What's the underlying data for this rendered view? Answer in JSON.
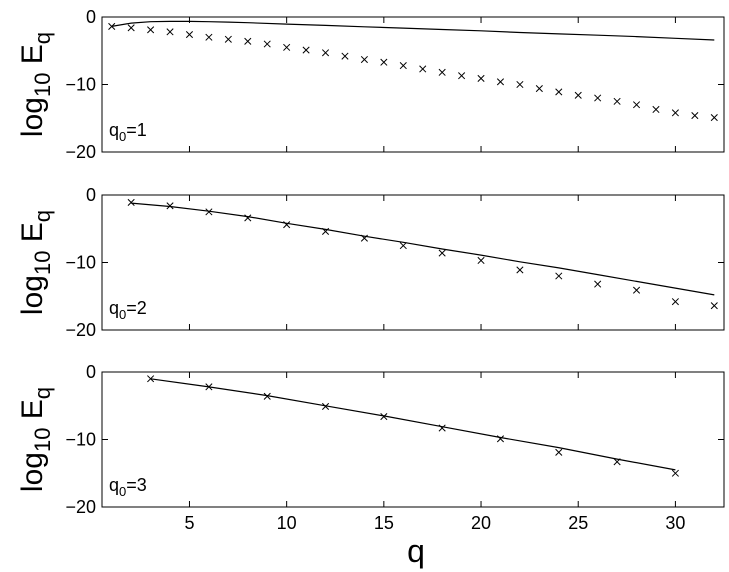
{
  "chart_data": [
    {
      "type": "line",
      "panel_label": {
        "base": "q",
        "sub": "0",
        "rest": "=1"
      },
      "ylabel": {
        "base": "log",
        "sub1": "10",
        "mid": " E",
        "sub2": "q"
      },
      "xlabel": "",
      "xlim": [
        0.5,
        32.5
      ],
      "ylim": [
        -20,
        0
      ],
      "yticks": [
        0,
        -10,
        -20
      ],
      "ytick_labels": [
        "0",
        "−10",
        "−20"
      ],
      "xticks": [
        5,
        10,
        15,
        20,
        25,
        30
      ],
      "xtick_labels": [
        "",
        "",
        "",
        "",
        "",
        ""
      ],
      "grid": false,
      "series": [
        {
          "kind": "line",
          "x": [
            1,
            2,
            3,
            4,
            5,
            6,
            7,
            8,
            10,
            12,
            14,
            16,
            18,
            20,
            22,
            24,
            26,
            28,
            30,
            32
          ],
          "y": [
            -1.4,
            -0.9,
            -0.7,
            -0.65,
            -0.65,
            -0.7,
            -0.75,
            -0.85,
            -1.05,
            -1.25,
            -1.45,
            -1.65,
            -1.85,
            -2.05,
            -2.3,
            -2.5,
            -2.7,
            -2.9,
            -3.15,
            -3.4
          ]
        },
        {
          "kind": "markers",
          "marker": "x",
          "x": [
            1,
            2,
            3,
            4,
            5,
            6,
            7,
            8,
            9,
            10,
            11,
            12,
            13,
            14,
            15,
            16,
            17,
            18,
            19,
            20,
            21,
            22,
            23,
            24,
            25,
            26,
            27,
            28,
            29,
            30,
            31,
            32
          ],
          "y": [
            -1.4,
            -1.6,
            -1.9,
            -2.2,
            -2.6,
            -3.0,
            -3.3,
            -3.6,
            -4.0,
            -4.5,
            -4.9,
            -5.3,
            -5.8,
            -6.3,
            -6.7,
            -7.2,
            -7.7,
            -8.2,
            -8.7,
            -9.1,
            -9.6,
            -10.0,
            -10.6,
            -11.1,
            -11.6,
            -12.0,
            -12.5,
            -13.0,
            -13.7,
            -14.2,
            -14.6,
            -14.9
          ]
        }
      ]
    },
    {
      "type": "line",
      "panel_label": {
        "base": "q",
        "sub": "0",
        "rest": "=2"
      },
      "ylabel": {
        "base": "log",
        "sub1": "10",
        "mid": " E",
        "sub2": "q"
      },
      "xlabel": "",
      "xlim": [
        0.5,
        32.5
      ],
      "ylim": [
        -20,
        0
      ],
      "yticks": [
        0,
        -10,
        -20
      ],
      "ytick_labels": [
        "0",
        "−10",
        "−20"
      ],
      "xticks": [
        5,
        10,
        15,
        20,
        25,
        30
      ],
      "xtick_labels": [
        "",
        "",
        "",
        "",
        "",
        ""
      ],
      "grid": false,
      "series": [
        {
          "kind": "line",
          "x": [
            2,
            4,
            6,
            8,
            10,
            12,
            14,
            16,
            18,
            20,
            22,
            24,
            26,
            28,
            30,
            32
          ],
          "y": [
            -1.2,
            -1.7,
            -2.4,
            -3.2,
            -4.2,
            -5.1,
            -6.1,
            -7.0,
            -8.0,
            -8.9,
            -9.9,
            -10.8,
            -11.8,
            -12.8,
            -13.8,
            -14.8
          ]
        },
        {
          "kind": "markers",
          "marker": "x",
          "x": [
            2,
            4,
            6,
            8,
            10,
            12,
            14,
            16,
            18,
            20,
            22,
            24,
            26,
            28,
            30,
            32
          ],
          "y": [
            -1.1,
            -1.6,
            -2.5,
            -3.4,
            -4.4,
            -5.4,
            -6.4,
            -7.5,
            -8.6,
            -9.7,
            -11.1,
            -12.0,
            -13.2,
            -14.1,
            -15.8,
            -16.4
          ]
        }
      ]
    },
    {
      "type": "line",
      "panel_label": {
        "base": "q",
        "sub": "0",
        "rest": "=3"
      },
      "ylabel": {
        "base": "log",
        "sub1": "10",
        "mid": " E",
        "sub2": "q"
      },
      "xlabel": "q",
      "xlim": [
        0.5,
        32.5
      ],
      "ylim": [
        -20,
        0
      ],
      "yticks": [
        0,
        -10,
        -20
      ],
      "ytick_labels": [
        "0",
        "−10",
        "−20"
      ],
      "xticks": [
        5,
        10,
        15,
        20,
        25,
        30
      ],
      "xtick_labels": [
        "5",
        "10",
        "15",
        "20",
        "25",
        "30"
      ],
      "grid": false,
      "series": [
        {
          "kind": "line",
          "x": [
            3,
            6,
            9,
            12,
            15,
            18,
            21,
            24,
            27,
            30
          ],
          "y": [
            -1.0,
            -2.2,
            -3.5,
            -5.0,
            -6.5,
            -8.1,
            -9.7,
            -11.2,
            -12.9,
            -14.5
          ]
        },
        {
          "kind": "markers",
          "marker": "x",
          "x": [
            3,
            6,
            9,
            12,
            15,
            18,
            21,
            24,
            27,
            30
          ],
          "y": [
            -1.0,
            -2.2,
            -3.6,
            -5.1,
            -6.6,
            -8.3,
            -9.9,
            -11.9,
            -13.3,
            -15.0
          ]
        }
      ]
    }
  ]
}
